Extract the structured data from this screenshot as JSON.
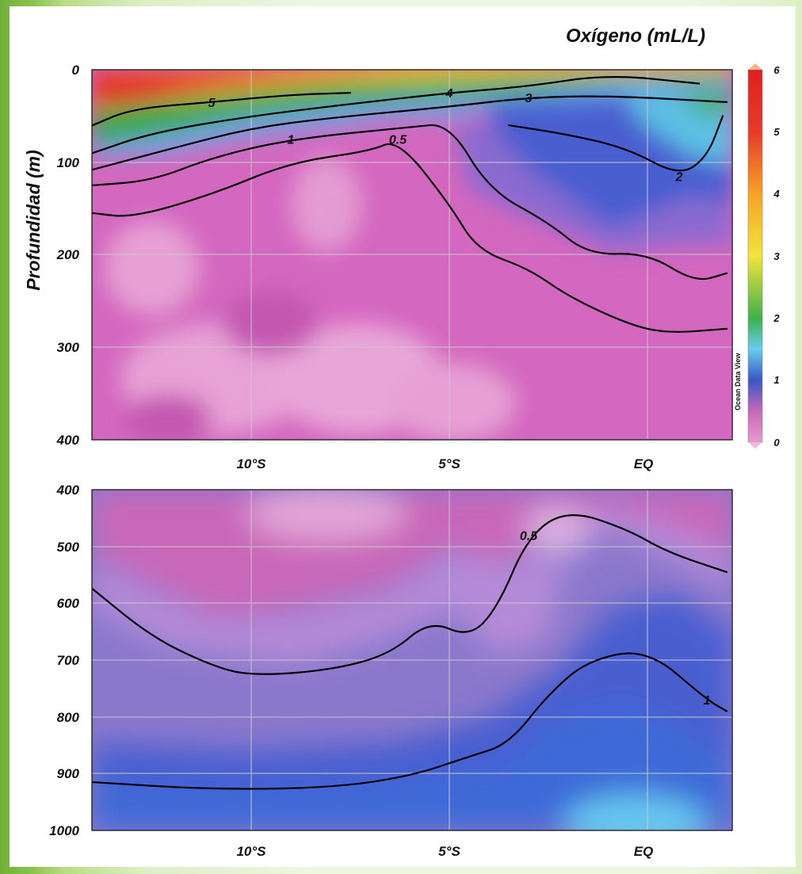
{
  "chart_data": [
    {
      "type": "heatmap",
      "subtype": "contour section",
      "title": "Oxígeno (mL/L)",
      "ylabel": "Profundidad (m)",
      "xlabel": "",
      "x_ticks": [
        "10°S",
        "5°S",
        "EQ"
      ],
      "y_ticks": [
        "0",
        "100",
        "200",
        "300",
        "400"
      ],
      "ylim": [
        0,
        400
      ],
      "y_inverted": true,
      "watermark": "Ocean Data View",
      "colorbar": {
        "min": 0,
        "max": 6,
        "ticks": [
          "0",
          "1",
          "2",
          "3",
          "4",
          "5",
          "6"
        ],
        "colors": {
          "0": "#e080c2",
          "0.5": "#c768b9",
          "1": "#3a56c4",
          "1.5": "#66cdf0",
          "2": "#3fb24a",
          "3": "#f2e43a",
          "4": "#f7a326",
          "5": "#e83a2a",
          "6": "#e02020"
        }
      },
      "contours": [
        {
          "level": "5",
          "label": "5",
          "depths_m": [
            {
              "lat": -14,
              "d": 60
            },
            {
              "lat": -13,
              "d": 42
            },
            {
              "lat": -11,
              "d": 35
            },
            {
              "lat": -9,
              "d": 27
            },
            {
              "lat": -7.5,
              "d": 25
            }
          ]
        },
        {
          "level": "4",
          "label": "4",
          "depths_m": [
            {
              "lat": -14,
              "d": 90
            },
            {
              "lat": -12.5,
              "d": 68
            },
            {
              "lat": -10,
              "d": 50
            },
            {
              "lat": -7.5,
              "d": 37
            },
            {
              "lat": -5,
              "d": 25
            },
            {
              "lat": -3,
              "d": 18
            },
            {
              "lat": -1,
              "d": 5
            },
            {
              "lat": 1.3,
              "d": 15
            }
          ]
        },
        {
          "level": "3",
          "label": "3",
          "depths_m": [
            {
              "lat": -14,
              "d": 108
            },
            {
              "lat": -12,
              "d": 85
            },
            {
              "lat": -10,
              "d": 63
            },
            {
              "lat": -8,
              "d": 52
            },
            {
              "lat": -5,
              "d": 40
            },
            {
              "lat": -3,
              "d": 30
            },
            {
              "lat": -1,
              "d": 28
            },
            {
              "lat": 2,
              "d": 35
            }
          ]
        },
        {
          "level": "2",
          "label": "2",
          "depths_m": [
            {
              "lat": -3.5,
              "d": 60
            },
            {
              "lat": -2,
              "d": 70
            },
            {
              "lat": -0.5,
              "d": 85
            },
            {
              "lat": 0.8,
              "d": 115
            },
            {
              "lat": 1.5,
              "d": 95
            },
            {
              "lat": 1.9,
              "d": 50
            }
          ]
        },
        {
          "level": "1",
          "label": "1",
          "depths_m": [
            {
              "lat": -14,
              "d": 125
            },
            {
              "lat": -12.5,
              "d": 120
            },
            {
              "lat": -11,
              "d": 95
            },
            {
              "lat": -9,
              "d": 75
            },
            {
              "lat": -6,
              "d": 62
            },
            {
              "lat": -5,
              "d": 58
            },
            {
              "lat": -4,
              "d": 130
            },
            {
              "lat": -2.5,
              "d": 165
            },
            {
              "lat": -1.5,
              "d": 200
            },
            {
              "lat": 0,
              "d": 198
            },
            {
              "lat": 1.2,
              "d": 230
            },
            {
              "lat": 2,
              "d": 220
            }
          ]
        },
        {
          "level": "0.5",
          "label": "0.5",
          "depths_m": [
            {
              "lat": -14,
              "d": 155
            },
            {
              "lat": -13,
              "d": 160
            },
            {
              "lat": -11,
              "d": 135
            },
            {
              "lat": -9,
              "d": 100
            },
            {
              "lat": -7,
              "d": 88
            },
            {
              "lat": -6.3,
              "d": 75
            },
            {
              "lat": -5,
              "d": 145
            },
            {
              "lat": -4.3,
              "d": 195
            },
            {
              "lat": -3,
              "d": 215
            },
            {
              "lat": -2,
              "d": 245
            },
            {
              "lat": -0.5,
              "d": 275
            },
            {
              "lat": 0.5,
              "d": 285
            },
            {
              "lat": 2,
              "d": 280
            }
          ]
        }
      ]
    },
    {
      "type": "heatmap",
      "subtype": "contour section",
      "title": "",
      "ylabel": "",
      "xlabel": "",
      "x_ticks": [
        "10°S",
        "5°S",
        "EQ"
      ],
      "y_ticks": [
        "400",
        "500",
        "600",
        "700",
        "800",
        "900",
        "1000"
      ],
      "ylim": [
        400,
        1000
      ],
      "y_inverted": true,
      "contours": [
        {
          "level": "0.5",
          "label": "0.5",
          "depths_m": [
            {
              "lat": -14,
              "d": 575
            },
            {
              "lat": -12.5,
              "d": 660
            },
            {
              "lat": -11,
              "d": 710
            },
            {
              "lat": -10,
              "d": 728
            },
            {
              "lat": -8,
              "d": 718
            },
            {
              "lat": -6.5,
              "d": 690
            },
            {
              "lat": -5.5,
              "d": 630
            },
            {
              "lat": -4.5,
              "d": 660
            },
            {
              "lat": -3.8,
              "d": 610
            },
            {
              "lat": -3,
              "d": 480
            },
            {
              "lat": -2,
              "d": 435
            },
            {
              "lat": -0.5,
              "d": 470
            },
            {
              "lat": 0.5,
              "d": 510
            },
            {
              "lat": 2,
              "d": 545
            }
          ]
        },
        {
          "level": "1",
          "label": "1",
          "depths_m": [
            {
              "lat": -14,
              "d": 915
            },
            {
              "lat": -11,
              "d": 928
            },
            {
              "lat": -8,
              "d": 925
            },
            {
              "lat": -6,
              "d": 905
            },
            {
              "lat": -4.5,
              "d": 870
            },
            {
              "lat": -3.5,
              "d": 848
            },
            {
              "lat": -2.5,
              "d": 760
            },
            {
              "lat": -1.5,
              "d": 700
            },
            {
              "lat": 0,
              "d": 680
            },
            {
              "lat": 1.5,
              "d": 770
            },
            {
              "lat": 2,
              "d": 790
            }
          ]
        }
      ]
    }
  ]
}
